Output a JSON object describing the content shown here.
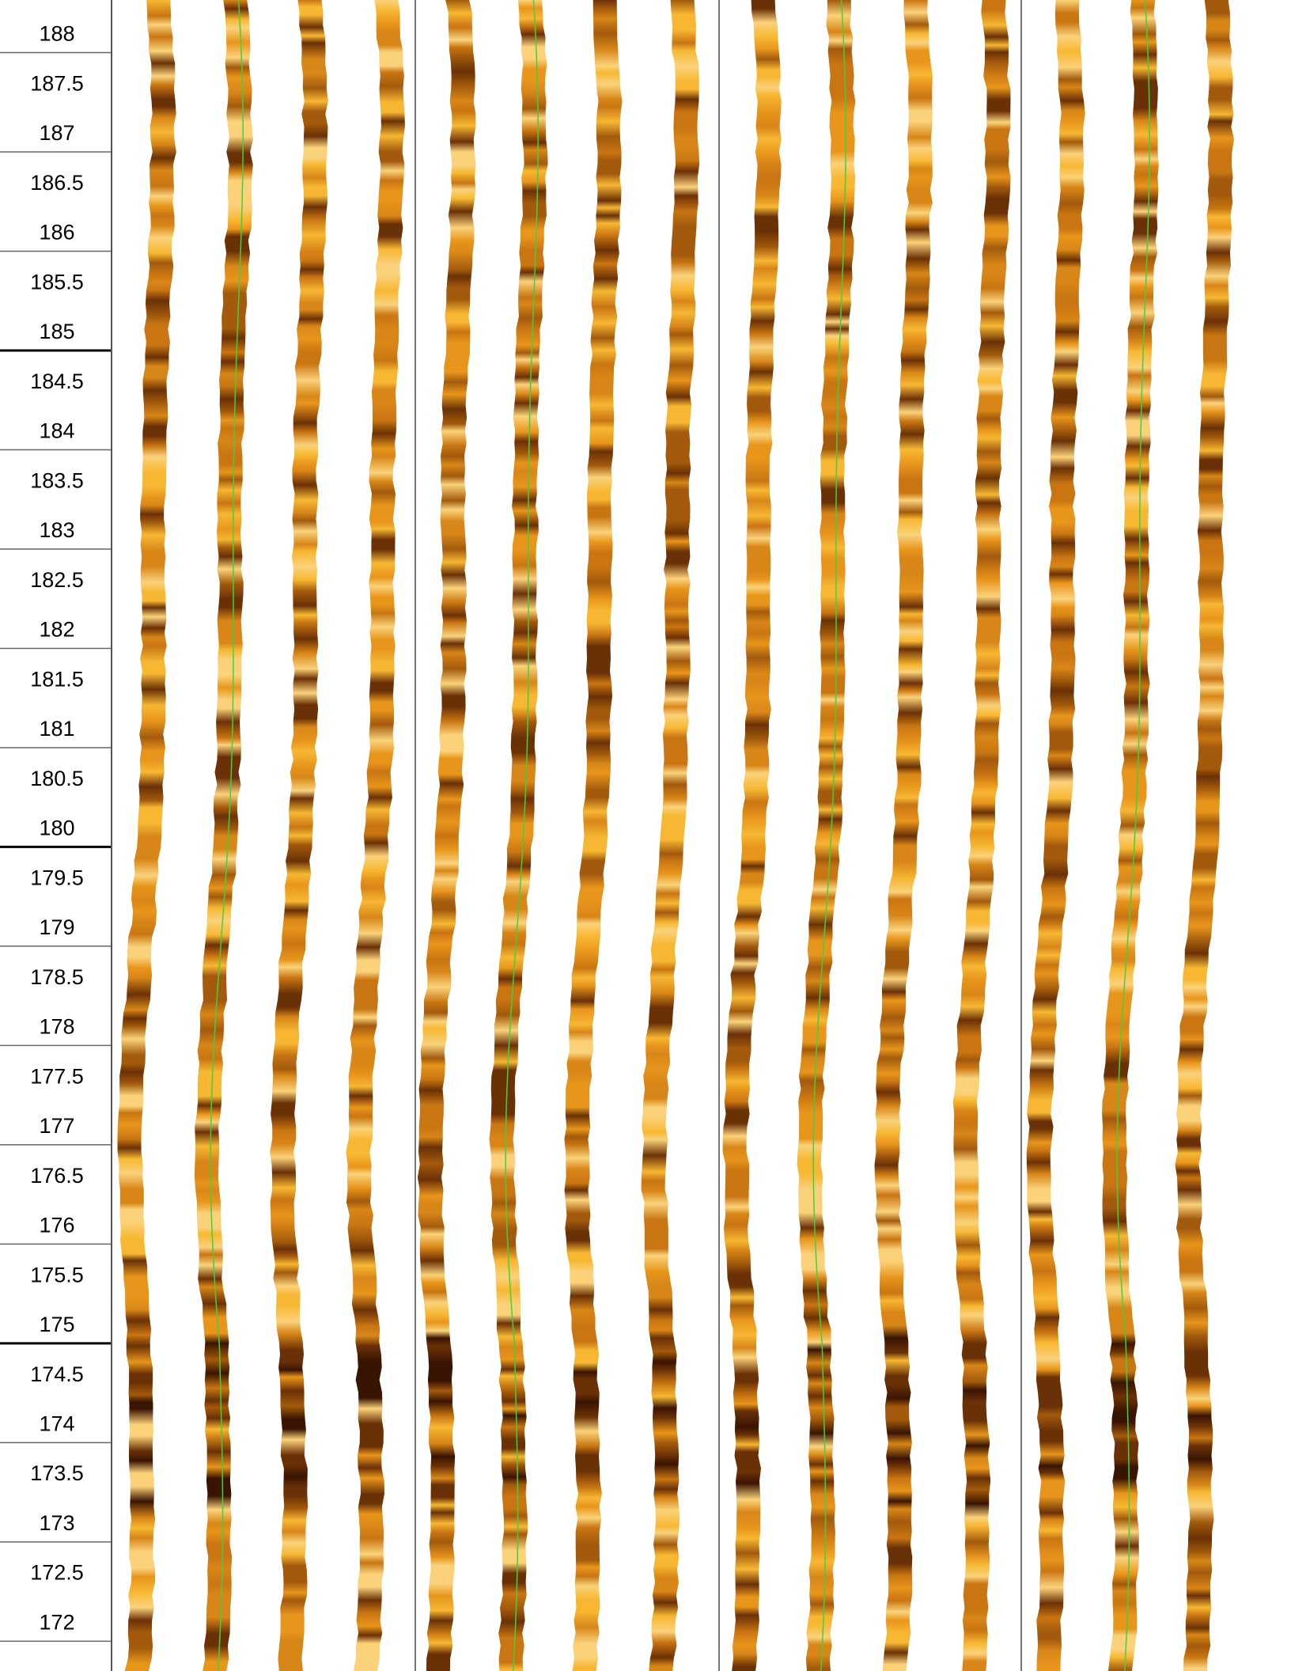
{
  "depth_track": {
    "ylim": [
      188.53,
      171.7
    ],
    "ticks": [
      188,
      187.5,
      187,
      186.5,
      186,
      185.5,
      185,
      184.5,
      184,
      183.5,
      183,
      182.5,
      182,
      181.5,
      181,
      180.5,
      180,
      179.5,
      179,
      178.5,
      178,
      177.5,
      177,
      176.5,
      176,
      175.5,
      175,
      174.5,
      174,
      173.5,
      173,
      172.5,
      172
    ],
    "major_every": 5
  }
}
